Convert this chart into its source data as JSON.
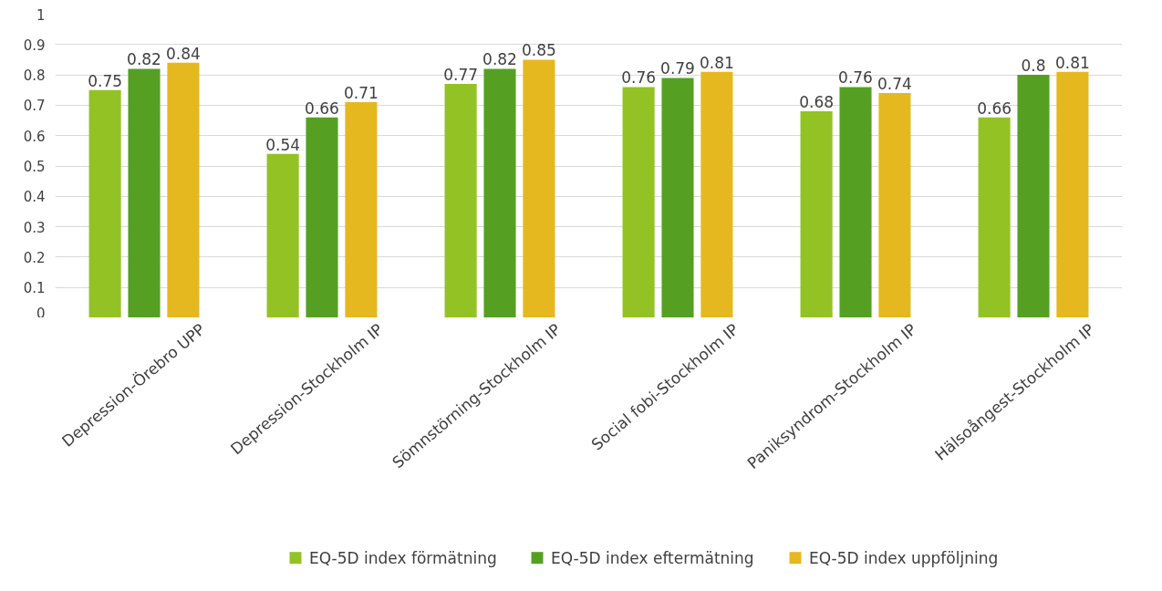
{
  "chart_data": {
    "type": "bar",
    "categories": [
      "Depression-Örebro UPP",
      "Depression-Stockholm IP",
      "Sömnstörning-Stockholm IP",
      "Social fobi-Stockholm IP",
      "Paniksyndrom-Stockholm IP",
      "Hälsoångest-Stockholm IP"
    ],
    "series": [
      {
        "name": "EQ-5D index förmätning",
        "color": "#93c225",
        "values": [
          0.75,
          0.54,
          0.77,
          0.76,
          0.68,
          0.66
        ]
      },
      {
        "name": "EQ-5D index eftermätning",
        "color": "#55a023",
        "values": [
          0.82,
          0.66,
          0.82,
          0.79,
          0.76,
          0.8
        ]
      },
      {
        "name": "EQ-5D index uppföljning",
        "color": "#e6b820",
        "values": [
          0.84,
          0.71,
          0.85,
          0.81,
          0.74,
          0.81
        ]
      }
    ],
    "ylim": [
      0,
      1
    ],
    "yticks": [
      0,
      0.1,
      0.2,
      0.3,
      0.4,
      0.5,
      0.6,
      0.7,
      0.8,
      0.9,
      1
    ],
    "grid": "y",
    "legend": "bottom",
    "data_labels": true
  }
}
